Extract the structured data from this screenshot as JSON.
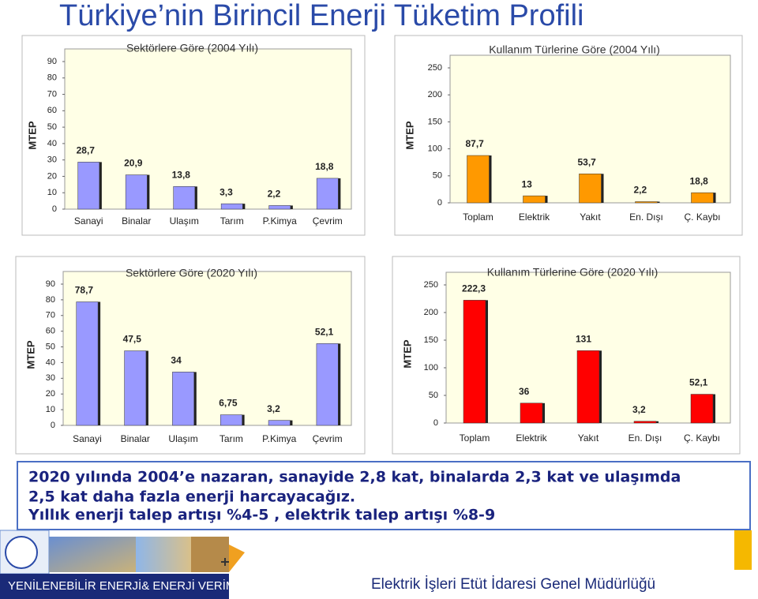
{
  "title": "Türkiye’nin Birincil Enerji Tüketim Profili",
  "chart_data": [
    {
      "type": "bar",
      "title": "Sektörlere Göre (2004 Yılı)",
      "y_label": "MTEP",
      "categories": [
        "Sanayi",
        "Binalar",
        "Ulaşım",
        "Tarım",
        "P.Kimya",
        "Çevrim"
      ],
      "values": [
        28.7,
        20.9,
        13.8,
        3.3,
        2.2,
        18.8
      ],
      "value_labels": [
        "28,7",
        "20,9",
        "13,8",
        "3,3",
        "2,2",
        "18,8"
      ],
      "color": "#9999ff",
      "ylim": [
        0,
        90
      ],
      "yticks": [
        0,
        10,
        20,
        30,
        40,
        50,
        60,
        70,
        80,
        90
      ]
    },
    {
      "type": "bar",
      "title": "Kullanım Türlerine Göre (2004 Yılı)",
      "y_label": "MTEP",
      "categories": [
        "Toplam",
        "Elektrik",
        "Yakıt",
        "En. Dışı",
        "Ç. Kaybı"
      ],
      "values": [
        87.7,
        13,
        53.7,
        2.2,
        18.8
      ],
      "value_labels": [
        "87,7",
        "13",
        "53,7",
        "2,2",
        "18,8"
      ],
      "color": "#ff9900",
      "ylim": [
        0,
        250
      ],
      "yticks": [
        0,
        50,
        100,
        150,
        200,
        250
      ]
    },
    {
      "type": "bar",
      "title": "Sektörlere Göre (2020 Yılı)",
      "y_label": "MTEP",
      "categories": [
        "Sanayi",
        "Binalar",
        "Ulaşım",
        "Tarım",
        "P.Kimya",
        "Çevrim"
      ],
      "values": [
        78.7,
        47.5,
        34,
        6.75,
        3.2,
        52.1
      ],
      "value_labels": [
        "78,7",
        "47,5",
        "34",
        "6,75",
        "3,2",
        "52,1"
      ],
      "color": "#9999ff",
      "ylim": [
        0,
        90
      ],
      "yticks": [
        0,
        10,
        20,
        30,
        40,
        50,
        60,
        70,
        80,
        90
      ]
    },
    {
      "type": "bar",
      "title": "Kullanım Türlerine Göre (2020 Yılı)",
      "y_label": "MTEP",
      "categories": [
        "Toplam",
        "Elektrik",
        "Yakıt",
        "En. Dışı",
        "Ç. Kaybı"
      ],
      "values": [
        222.3,
        36,
        131,
        3.2,
        52.1
      ],
      "value_labels": [
        "222,3",
        "36",
        "131",
        "3,2",
        "52,1"
      ],
      "color": "#ff0000",
      "ylim": [
        0,
        250
      ],
      "yticks": [
        0,
        50,
        100,
        150,
        200,
        250
      ]
    }
  ],
  "note": {
    "lines": [
      "2020 yılında 2004’e nazaran, sanayide 2,8 kat, binalarda 2,3 kat ve ulaşımda",
      "2,5 kat daha fazla enerji harcayacağız.",
      "Yıllık enerji talep artışı  %4-5 , elektrik talep artışı %8-9"
    ]
  },
  "footer": {
    "left": "YENİLENEBİLİR ENERJİ& ENERJİ VERİMLİLİĞİ",
    "right": "Elektrik İşleri Etüt İdaresi Genel Müdürlüğü"
  }
}
